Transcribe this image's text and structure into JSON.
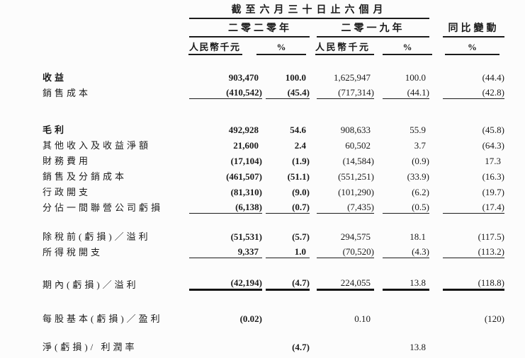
{
  "page": {
    "background": "#fcfcfc",
    "text_color": "#1b1b1b",
    "rule_color": "#1b1b1b"
  },
  "header": {
    "period_title": "截至六月三十日止六個月",
    "year_2020": "二零二零年",
    "year_2019": "二零一九年",
    "yoy_change": "同比變動",
    "subcol_rmb_2020": "人民幣千元",
    "subcol_pct_2020": "%",
    "subcol_rmb_2019": "人民幣千元",
    "subcol_pct_2019": "%",
    "subcol_pct_yoy": "%"
  },
  "table": {
    "columns": [
      "label",
      "2020_rmb_thousand",
      "2020_pct",
      "2019_rmb_thousand",
      "2019_pct",
      "yoy_pct"
    ],
    "rows": [
      {
        "label": "收益",
        "label_bold": true,
        "cells": [
          "903,470",
          "100.0",
          "1,625,947",
          "100.0",
          "(44.4)"
        ],
        "underline": "none",
        "spacer_before": 0
      },
      {
        "label": "銷售成本",
        "label_bold": false,
        "cells": [
          "(410,542)",
          "(45.4)",
          "(717,314)",
          "(44.1)",
          "(42.8)"
        ],
        "underline": "single",
        "spacer_before": 0
      },
      {
        "label": "毛利",
        "label_bold": true,
        "cells": [
          "492,928",
          "54.6",
          "908,633",
          "55.9",
          "(45.8)"
        ],
        "underline": "none",
        "spacer_before": 30
      },
      {
        "label": "其他收入及收益淨額",
        "label_bold": false,
        "cells": [
          "21,600",
          "2.4",
          "60,502",
          "3.7",
          "(64.3)"
        ],
        "underline": "none",
        "spacer_before": 0
      },
      {
        "label": "財務費用",
        "label_bold": false,
        "cells": [
          "(17,104)",
          "(1.9)",
          "(14,584)",
          "(0.9)",
          "17.3"
        ],
        "underline": "none",
        "spacer_before": 0
      },
      {
        "label": "銷售及分銷成本",
        "label_bold": false,
        "cells": [
          "(461,507)",
          "(51.1)",
          "(551,251)",
          "(33.9)",
          "(16.3)"
        ],
        "underline": "none",
        "spacer_before": 0
      },
      {
        "label": "行政開支",
        "label_bold": false,
        "cells": [
          "(81,310)",
          "(9.0)",
          "(101,290)",
          "(6.2)",
          "(19.7)"
        ],
        "underline": "none",
        "spacer_before": 0
      },
      {
        "label": "分佔一間聯營公司虧損",
        "label_bold": false,
        "cells": [
          "(6,138)",
          "(0.7)",
          "(7,435)",
          "(0.5)",
          "(17.4)"
        ],
        "underline": "single",
        "spacer_before": 0
      },
      {
        "label": "除稅前(虧損)／溢利",
        "label_bold": false,
        "cells": [
          "(51,531)",
          "(5.7)",
          "294,575",
          "18.1",
          "(117.5)"
        ],
        "underline": "none",
        "spacer_before": 19
      },
      {
        "label": "所得稅開支",
        "label_bold": false,
        "cells": [
          "9,337",
          "1.0",
          "(70,520)",
          "(4.3)",
          "(113.2)"
        ],
        "underline": "single",
        "spacer_before": 0
      },
      {
        "label": "期內(虧損)／溢利",
        "label_bold": false,
        "cells": [
          "(42,194)",
          "(4.7)",
          "224,055",
          "13.8",
          "(118.8)"
        ],
        "underline": "thick",
        "spacer_before": 24
      },
      {
        "label": "每股基本(虧損)／盈利",
        "label_bold": false,
        "cells": [
          "(0.02)",
          "",
          "0.10",
          "",
          "(120)"
        ],
        "underline": "none",
        "spacer_before": 26
      },
      {
        "label": "淨(虧損)/ 利潤率",
        "label_bold": false,
        "cells": [
          "",
          "(4.7)",
          "",
          "13.8",
          ""
        ],
        "underline": "none",
        "spacer_before": 18
      }
    ]
  }
}
